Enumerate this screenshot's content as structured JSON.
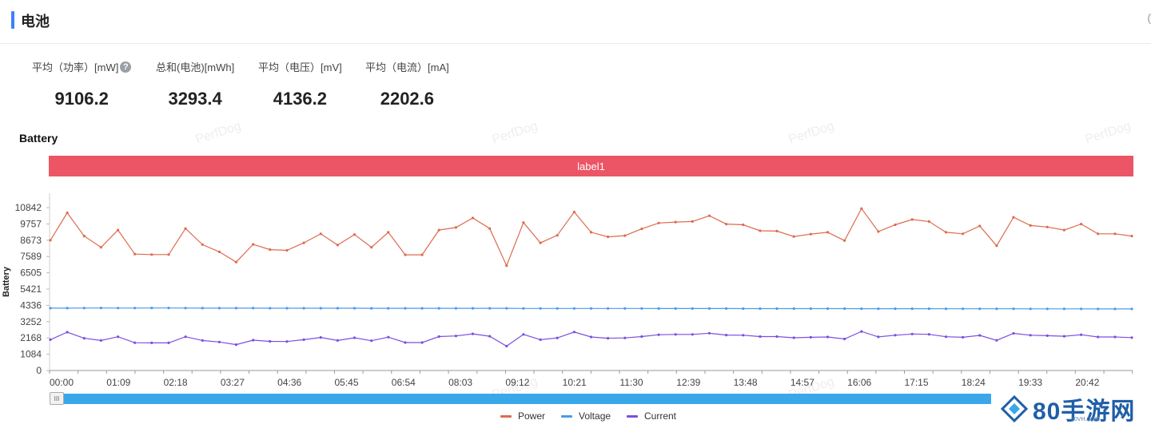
{
  "section": {
    "title": "电池",
    "corner_glyph": "("
  },
  "stats": [
    {
      "label": "平均（功率）[mW]",
      "value": "9106.2",
      "has_help": true
    },
    {
      "label": "总和(电池)[mWh]",
      "value": "3293.4",
      "has_help": false
    },
    {
      "label": "平均（电压）[mV]",
      "value": "4136.2",
      "has_help": false
    },
    {
      "label": "平均（电流）[mA]",
      "value": "2202.6",
      "has_help": false
    }
  ],
  "help_icon": "?",
  "watermark": "PerfDog",
  "slider_handle_glyph": "III",
  "brand": {
    "text": "80手游网",
    "sub": "80VH.COM",
    "icon": "diamond-logo-icon"
  },
  "chart_data": {
    "type": "line",
    "title": "Battery",
    "label_band": "label1",
    "ylabel": "Battery",
    "xlabel": "",
    "ylim": [
      0,
      11800
    ],
    "yticks": [
      0,
      1084,
      2168,
      3252,
      4336,
      5421,
      6505,
      7589,
      8673,
      9757,
      10842
    ],
    "x_tick_labels": [
      "00:00",
      "01:09",
      "02:18",
      "03:27",
      "04:36",
      "05:45",
      "06:54",
      "08:03",
      "09:12",
      "10:21",
      "11:30",
      "12:39",
      "13:48",
      "14:57",
      "16:06",
      "17:15",
      "18:24",
      "19:33",
      "20:42"
    ],
    "grid": false,
    "legend_position": "bottom-center",
    "series": [
      {
        "name": "Power",
        "color": "#dd6b4f",
        "values": [
          8670,
          10500,
          8950,
          8200,
          9350,
          7750,
          7720,
          7720,
          9450,
          8380,
          7900,
          7220,
          8400,
          8050,
          8000,
          8500,
          9100,
          8350,
          9050,
          8200,
          9200,
          7700,
          7700,
          9350,
          9520,
          10150,
          9450,
          6980,
          9850,
          8500,
          9000,
          10550,
          9200,
          8900,
          8980,
          9430,
          9820,
          9880,
          9920,
          10300,
          9750,
          9700,
          9300,
          9280,
          8920,
          9080,
          9200,
          8650,
          10780,
          9250,
          9700,
          10050,
          9920,
          9200,
          9100,
          9620,
          8300,
          10200,
          9650,
          9550,
          9350,
          9750,
          9100,
          9100,
          8950
        ]
      },
      {
        "name": "Voltage",
        "color": "#4e9ae8",
        "values": [
          4150,
          4150,
          4155,
          4160,
          4155,
          4155,
          4160,
          4160,
          4155,
          4150,
          4150,
          4150,
          4150,
          4145,
          4145,
          4145,
          4145,
          4145,
          4145,
          4140,
          4140,
          4140,
          4140,
          4140,
          4140,
          4138,
          4138,
          4140,
          4130,
          4130,
          4130,
          4130,
          4130,
          4128,
          4128,
          4128,
          4125,
          4125,
          4125,
          4125,
          4125,
          4122,
          4120,
          4120,
          4120,
          4120,
          4120,
          4118,
          4115,
          4115,
          4115,
          4112,
          4112,
          4110,
          4110,
          4110,
          4108,
          4108,
          4105,
          4105,
          4105,
          4102,
          4100,
          4100,
          4100
        ]
      },
      {
        "name": "Current",
        "color": "#7b4fe0",
        "values": [
          2050,
          2550,
          2150,
          2000,
          2250,
          1850,
          1840,
          1840,
          2250,
          2000,
          1900,
          1720,
          2020,
          1940,
          1930,
          2050,
          2200,
          2000,
          2180,
          1980,
          2220,
          1860,
          1860,
          2260,
          2300,
          2440,
          2280,
          1620,
          2400,
          2050,
          2170,
          2560,
          2230,
          2150,
          2170,
          2260,
          2380,
          2400,
          2400,
          2480,
          2360,
          2350,
          2260,
          2260,
          2180,
          2210,
          2230,
          2100,
          2600,
          2240,
          2350,
          2430,
          2410,
          2250,
          2210,
          2340,
          2010,
          2470,
          2350,
          2320,
          2280,
          2380,
          2230,
          2230,
          2190
        ]
      }
    ]
  }
}
